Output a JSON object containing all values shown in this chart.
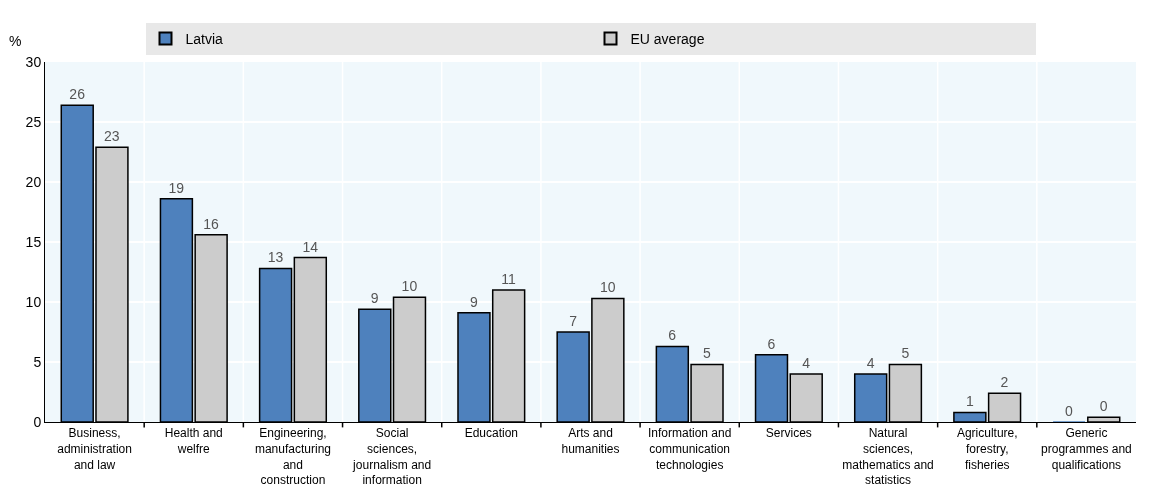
{
  "chart_data": {
    "type": "bar",
    "ylabel": "%",
    "categories": [
      "Business, administration and law",
      "Health and welfre",
      "Engineering, manufacturing and construction",
      "Social sciences, journalism and information",
      "Education",
      "Arts and humanities",
      "Information and communication technologies",
      "Services",
      "Natural sciences, mathematics and statistics",
      "Agriculture, forestry, fisheries",
      "Generic programmes and qualifications"
    ],
    "series": [
      {
        "name": "Latvia",
        "color": "#4e81bd",
        "values": [
          26.4,
          18.6,
          12.8,
          9.4,
          9.1,
          7.5,
          6.3,
          5.6,
          4.0,
          0.8,
          0.0
        ],
        "value_labels": [
          "26",
          "19",
          "13",
          "9",
          "9",
          "7",
          "6",
          "6",
          "4",
          "1",
          "0"
        ]
      },
      {
        "name": "EU average",
        "color": "#cccccc",
        "values": [
          22.9,
          15.6,
          13.7,
          10.4,
          11.0,
          10.3,
          4.8,
          4.0,
          4.8,
          2.4,
          0.4
        ],
        "value_labels": [
          "23",
          "16",
          "14",
          "10",
          "11",
          "10",
          "5",
          "4",
          "5",
          "2",
          "0"
        ]
      }
    ],
    "ylim": [
      0,
      30
    ],
    "yticks": [
      0,
      5,
      10,
      15,
      20,
      25,
      30
    ],
    "grid": true,
    "legend": "top"
  }
}
